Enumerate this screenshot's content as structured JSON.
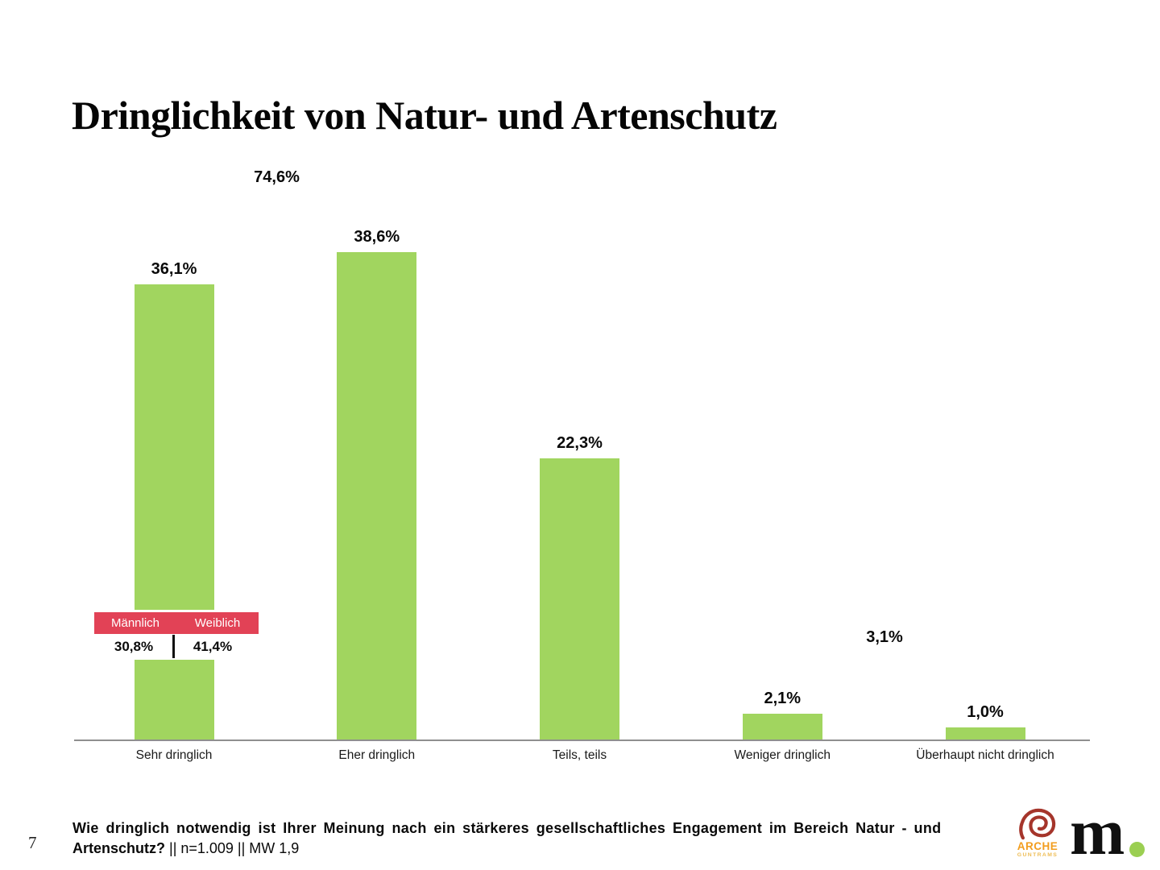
{
  "slide": {
    "title": "Dringlichkeit von Natur- und Artenschutz",
    "page_number": "7",
    "footer": {
      "line1_bold": "Wie dringlich notwendig ist Ihrer Meinung nach ein stärkeres gesellschaftliches Engagement im Bereich Natur - und",
      "line2_bold": "Artenschutz?",
      "line2_regular": " || n=1.009 || MW 1,9"
    },
    "logos": {
      "arche": {
        "name": "ARCHE",
        "subname": "GUNTRAMS",
        "spiral_color": "#a5352b",
        "text_color": "#f29d1e",
        "subtext_color": "#eebd55"
      },
      "m": {
        "letter": "m",
        "letter_color": "#101010",
        "dot_color": "#9bcf52"
      }
    }
  },
  "chart_data": {
    "type": "bar",
    "title": "Dringlichkeit von Natur- und Artenschutz",
    "categories": [
      "Sehr dringlich",
      "Eher dringlich",
      "Teils, teils",
      "Weniger dringlich",
      "Überhaupt nicht dringlich"
    ],
    "values": [
      36.1,
      38.6,
      22.3,
      2.1,
      1.0
    ],
    "value_labels": [
      "36,1%",
      "38,6%",
      "22,3%",
      "2,1%",
      "1,0%"
    ],
    "xlabel": "",
    "ylabel": "",
    "ylim": [
      0,
      40
    ],
    "grid": false,
    "legend": false,
    "bar_color": "#a1d55f",
    "axis_color": "#8f8f8f",
    "brackets": [
      {
        "label": "74,6%",
        "from_category": "Sehr dringlich",
        "to_category": "Eher dringlich",
        "sum_of": [
          36.1,
          38.6
        ]
      },
      {
        "label": "3,1%",
        "from_category": "Weniger dringlich",
        "to_category": "Überhaupt nicht dringlich",
        "sum_of": [
          2.1,
          1.0
        ]
      }
    ],
    "callout": {
      "target_category": "Sehr dringlich",
      "color": "#e24256",
      "columns": [
        "Männlich",
        "Weiblich"
      ],
      "values": [
        "30,8%",
        "41,4%"
      ]
    }
  }
}
